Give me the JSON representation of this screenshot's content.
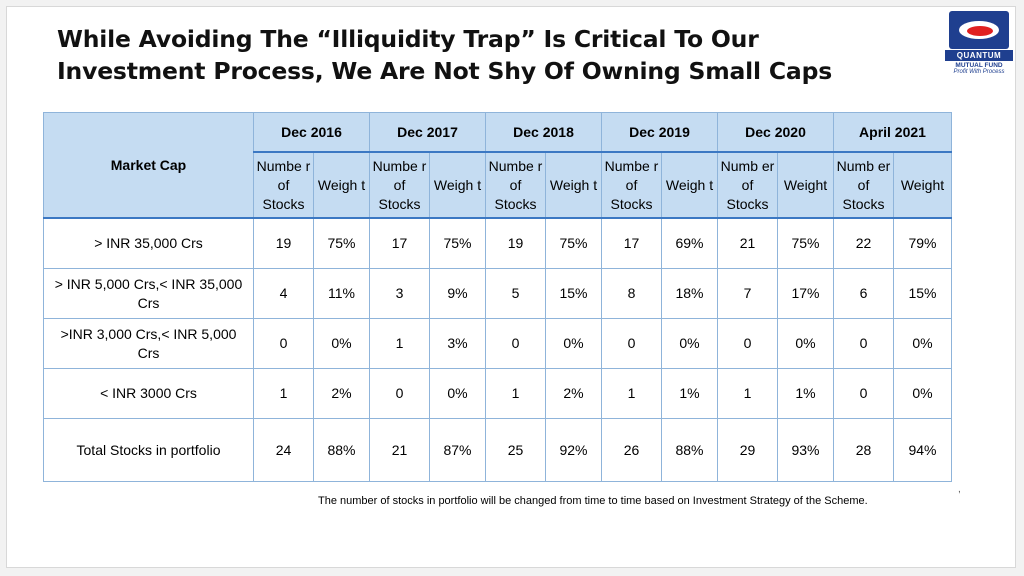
{
  "title_lines": [
    "While Avoiding The “Illiquidity Trap” Is Critical To Our",
    "Investment Process, We Are Not Shy Of Owning Small Caps"
  ],
  "logo": {
    "brand": "QUANTUM",
    "sub": "MUTUAL FUND",
    "tagline": "Profit With Process"
  },
  "table": {
    "header": {
      "market_cap": "Market Cap",
      "years": [
        "Dec 2016",
        "Dec 2017",
        "Dec 2018",
        "Dec 2019",
        "Dec 2020",
        "April 2021"
      ],
      "subheaders": [
        [
          "Numbe r of Stocks",
          "Weigh t"
        ],
        [
          "Numbe r of Stocks",
          "Weigh t"
        ],
        [
          "Numbe r of Stocks",
          "Weigh t"
        ],
        [
          "Numbe r of Stocks",
          "Weigh t"
        ],
        [
          "Numb er of Stocks",
          "Weight"
        ],
        [
          "Numb er of Stocks",
          "Weight"
        ]
      ]
    },
    "rows": [
      {
        "label": "> INR 35,000 Crs",
        "cells": [
          "19",
          "75%",
          "17",
          "75%",
          "19",
          "75%",
          "17",
          "69%",
          "21",
          "75%",
          "22",
          "79%"
        ]
      },
      {
        "label": "> INR 5,000 Crs,< INR 35,000 Crs",
        "cells": [
          "4",
          "11%",
          "3",
          "9%",
          "5",
          "15%",
          "8",
          "18%",
          "7",
          "17%",
          "6",
          "15%"
        ]
      },
      {
        "label": ">INR 3,000 Crs,< INR 5,000 Crs",
        "cells": [
          "0",
          "0%",
          "1",
          "3%",
          "0",
          "0%",
          "0",
          "0%",
          "0",
          "0%",
          "0",
          "0%"
        ]
      },
      {
        "label": "< INR 3000 Crs",
        "cells": [
          "1",
          "2%",
          "0",
          "0%",
          "1",
          "2%",
          "1",
          "1%",
          "1",
          "1%",
          "0",
          "0%"
        ]
      },
      {
        "label": "Total Stocks in portfolio",
        "cells": [
          "24",
          "88%",
          "21",
          "87%",
          "25",
          "92%",
          "26",
          "88%",
          "29",
          "93%",
          "28",
          "94%"
        ]
      }
    ]
  },
  "footnote": "The number of stocks in portfolio will be changed from time to time based on Investment Strategy of the Scheme."
}
